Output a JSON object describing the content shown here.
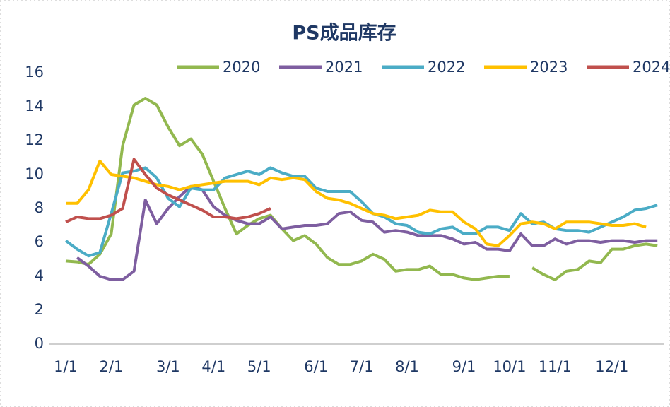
{
  "chart_data": {
    "type": "line",
    "title": "PS成品库存",
    "categories": [
      "1/1",
      null,
      null,
      null,
      "2/1",
      null,
      null,
      null,
      null,
      "3/1",
      null,
      null,
      null,
      "4/1",
      null,
      null,
      null,
      "5/1",
      null,
      null,
      null,
      null,
      "6/1",
      null,
      null,
      null,
      "7/1",
      null,
      null,
      null,
      "8/1",
      null,
      null,
      null,
      null,
      "9/1",
      null,
      null,
      null,
      "10/1",
      null,
      null,
      null,
      "11/1",
      null,
      null,
      null,
      null,
      "12/1",
      null,
      null,
      null,
      null
    ],
    "series": [
      {
        "name": "2020",
        "color": "#92b84f",
        "values": [
          4.9,
          4.85,
          4.7,
          5.3,
          6.5,
          11.7,
          14.1,
          14.5,
          14.1,
          12.8,
          11.7,
          12.1,
          11.2,
          9.6,
          8.0,
          6.5,
          7.0,
          7.4,
          7.6,
          6.8,
          6.1,
          6.4,
          5.9,
          5.1,
          4.7,
          4.7,
          4.9,
          5.3,
          5.0,
          4.3,
          4.4,
          4.4,
          4.6,
          4.1,
          4.1,
          3.9,
          3.8,
          3.9,
          4.0,
          4.0,
          null,
          4.5,
          4.1,
          3.8,
          4.3,
          4.4,
          4.9,
          4.8,
          5.6,
          5.6,
          5.8,
          5.9,
          5.8
        ]
      },
      {
        "name": "2021",
        "color": "#7e5ea0",
        "values": [
          null,
          5.1,
          4.6,
          4.0,
          3.8,
          3.8,
          4.3,
          8.5,
          7.1,
          8.0,
          8.7,
          9.3,
          9.1,
          8.1,
          7.6,
          7.3,
          7.1,
          7.1,
          7.5,
          6.8,
          6.9,
          7.0,
          7.0,
          7.1,
          7.7,
          7.8,
          7.3,
          7.2,
          6.6,
          6.7,
          6.6,
          6.4,
          6.4,
          6.4,
          6.2,
          5.9,
          6.0,
          5.6,
          5.6,
          5.5,
          6.5,
          5.8,
          5.8,
          6.2,
          5.9,
          6.1,
          6.1,
          6.0,
          6.1,
          6.1,
          6.0,
          6.1,
          6.1
        ]
      },
      {
        "name": "2022",
        "color": "#4bacc6",
        "values": [
          6.1,
          5.6,
          5.2,
          5.4,
          7.7,
          10.1,
          10.2,
          10.4,
          9.8,
          8.6,
          8.1,
          9.2,
          9.1,
          9.1,
          9.8,
          10.0,
          10.2,
          10.0,
          10.4,
          10.1,
          9.9,
          9.9,
          9.2,
          9.0,
          9.0,
          9.0,
          8.4,
          7.7,
          7.5,
          7.1,
          7.0,
          6.6,
          6.5,
          6.8,
          6.9,
          6.5,
          6.5,
          6.9,
          6.9,
          6.7,
          7.7,
          7.1,
          7.2,
          6.8,
          6.7,
          6.7,
          6.6,
          6.9,
          7.2,
          7.5,
          7.9,
          8.0,
          8.2
        ]
      },
      {
        "name": "2023",
        "color": "#ffc000",
        "values": [
          8.3,
          8.3,
          9.1,
          10.8,
          10.0,
          9.9,
          9.8,
          9.6,
          9.4,
          9.3,
          9.1,
          9.3,
          9.4,
          9.5,
          9.6,
          9.6,
          9.6,
          9.4,
          9.8,
          9.7,
          9.8,
          9.7,
          9.0,
          8.6,
          8.5,
          8.3,
          8.0,
          7.7,
          7.6,
          7.4,
          7.5,
          7.6,
          7.9,
          7.8,
          7.8,
          7.2,
          6.8,
          5.9,
          5.8,
          6.4,
          7.1,
          7.2,
          7.1,
          6.8,
          7.2,
          7.2,
          7.2,
          7.1,
          7.0,
          7.0,
          7.1,
          6.9,
          null
        ]
      },
      {
        "name": "2024",
        "color": "#c0504d",
        "values": [
          7.2,
          7.5,
          7.4,
          7.4,
          7.6,
          8.0,
          10.9,
          10.0,
          9.2,
          8.8,
          8.5,
          8.2,
          7.9,
          7.5,
          7.5,
          7.4,
          7.5,
          7.7,
          8.0,
          null,
          null,
          null,
          null,
          null,
          null,
          null,
          null,
          null,
          null,
          null,
          null,
          null,
          null,
          null,
          null,
          null,
          null,
          null,
          null,
          null,
          null,
          null,
          null,
          null,
          null,
          null,
          null,
          null,
          null,
          null,
          null,
          null,
          null
        ]
      }
    ],
    "ylim": [
      0,
      16
    ],
    "yticks": [
      0,
      2,
      4,
      6,
      8,
      10,
      12,
      14,
      16
    ],
    "grid": false
  }
}
